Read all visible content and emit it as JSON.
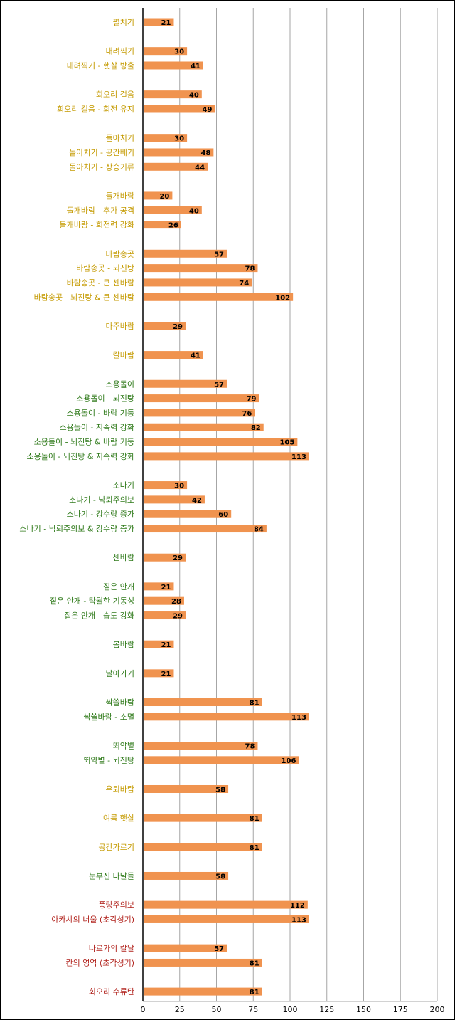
{
  "colors": {
    "bar": "#f0934f",
    "gold": "#c49a00",
    "green": "#2f7a1a",
    "red": "#b0201a",
    "grid": "#a6a6a6",
    "axis": "#000000"
  },
  "chart_data": {
    "type": "bar",
    "orientation": "horizontal",
    "title": "",
    "xlabel": "",
    "ylabel": "",
    "xlim": [
      0,
      200
    ],
    "xticks": [
      0,
      25,
      50,
      75,
      100,
      125,
      150,
      175,
      200
    ],
    "grid": true,
    "legend": "none",
    "categories": [
      "펼치기",
      "내려찍기",
      "내려찍기 - 햇살 방출",
      "회오리 걸음",
      "회오리 걸음 - 회전 유지",
      "돌아치기",
      "돌아치기 - 공간베기",
      "돌아치기 - 상승기류",
      "돌개바람",
      "돌개바람 - 추가 공격",
      "돌개바람 - 회전력 강화",
      "바람송곳",
      "바람송곳 - 뇌진탕",
      "바람송곳 - 큰 센바람",
      "바람송곳 - 뇌진탕 & 큰 센바람",
      "마주바람",
      "칼바람",
      "소용돌이",
      "소용돌이 - 뇌진탕",
      "소용돌이 - 바람 기둥",
      "소용돌이 - 지속력 강화",
      "소용돌이 - 뇌진탕 & 바람 기둥",
      "소용돌이 - 뇌진탕 & 지속력 강화",
      "소나기",
      "소나기 - 낙뢰주의보",
      "소나기 - 강수량 증가",
      "소나기 - 낙뢰주의보 & 강수량 증가",
      "센바람",
      "짙은 안개",
      "짙은 안개 - 탁월한 기동성",
      "짙은 안개 - 습도 강화",
      "봄바람",
      "날아가기",
      "싹쓸바람",
      "싹쓸바람 - 소멸",
      "뙤약볕",
      "뙤약볕 - 뇌진탕",
      "우뢰바람",
      "여름 햇살",
      "공간가르기",
      "눈부신 나날들",
      "풍랑주의보",
      "아카샤의 너울 (초각성기)",
      "나르가의 칼날",
      "칸의 영역 (초각성기)",
      "회오리 수류탄"
    ],
    "values": [
      21,
      30,
      41,
      40,
      49,
      30,
      48,
      44,
      20,
      40,
      26,
      57,
      78,
      74,
      102,
      29,
      41,
      57,
      79,
      76,
      82,
      105,
      113,
      30,
      42,
      60,
      84,
      29,
      21,
      28,
      29,
      21,
      21,
      81,
      113,
      78,
      106,
      58,
      81,
      81,
      58,
      112,
      113,
      57,
      81,
      81
    ],
    "label_colors": [
      "gold",
      "gold",
      "gold",
      "gold",
      "gold",
      "gold",
      "gold",
      "gold",
      "gold",
      "gold",
      "gold",
      "gold",
      "gold",
      "gold",
      "gold",
      "gold",
      "gold",
      "green",
      "green",
      "green",
      "green",
      "green",
      "green",
      "green",
      "green",
      "green",
      "green",
      "green",
      "green",
      "green",
      "green",
      "green",
      "green",
      "green",
      "green",
      "green",
      "green",
      "gold",
      "gold",
      "gold",
      "green",
      "red",
      "red",
      "red",
      "red",
      "red"
    ],
    "row_index": [
      0,
      2,
      3,
      5,
      6,
      8,
      9,
      10,
      12,
      13,
      14,
      16,
      17,
      18,
      19,
      21,
      23,
      25,
      26,
      27,
      28,
      29,
      30,
      32,
      33,
      34,
      35,
      37,
      39,
      40,
      41,
      43,
      45,
      47,
      48,
      50,
      51,
      53,
      55,
      57,
      59,
      61,
      62,
      64,
      65,
      67
    ]
  }
}
